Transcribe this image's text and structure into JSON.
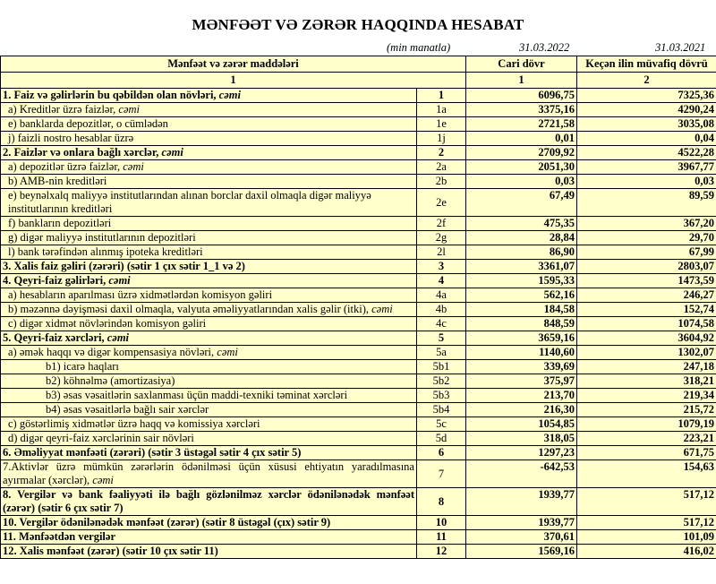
{
  "title": "MƏNFƏƏT VƏ ZƏRƏR HAQQINDA HESABAT",
  "units": "(min manatla)",
  "date_current": "31.03.2022",
  "date_previous": "31.03.2021",
  "header": {
    "col_items": "Mənfəət və zərər maddələri",
    "col_current": "Cari dövr",
    "col_previous": "Keçən ilin müvafiq dövrü",
    "num_items": "1",
    "num_current": "1",
    "num_previous": "2"
  },
  "rows": [
    {
      "label": "1. Faiz və gəlirlərin bu qəbildən olan növləri, ",
      "em": "cəmi",
      "code": "1",
      "cur": "6096,75",
      "prev": "7325,36",
      "bold": true,
      "level": 0
    },
    {
      "label": "a) Kreditlər üzrə faizlər, ",
      "em": "cəmi",
      "code": "1a",
      "cur": "3375,16",
      "prev": "4290,24",
      "bold": false,
      "level": 1
    },
    {
      "label": "e) banklarda depozitlər, o cümlədən",
      "em": "",
      "code": "1e",
      "cur": "2721,58",
      "prev": "3035,08",
      "bold": false,
      "level": 1
    },
    {
      "label": "j) faizli nostro hesablar üzrə",
      "em": "",
      "code": "1j",
      "cur": "0,01",
      "prev": "0,04",
      "bold": false,
      "level": 1
    },
    {
      "label": "2. Faizlər və onlara bağlı xərclər, ",
      "em": "cəmi",
      "code": "2",
      "cur": "2709,92",
      "prev": "4522,28",
      "bold": true,
      "level": 0
    },
    {
      "label": "a) depozitlər üzrə faizlər, ",
      "em": "cəmi",
      "code": "2a",
      "cur": "2051,30",
      "prev": "3967,77",
      "bold": false,
      "level": 1
    },
    {
      "label": "b) AMB-nin kreditləri",
      "em": "",
      "code": "2b",
      "cur": "0,03",
      "prev": "0,03",
      "bold": false,
      "level": 1
    },
    {
      "label": "e) beynəlxalq maliyyə institutlarından alınan borclar daxil olmaqla digər maliyyə institutlarının kreditləri",
      "em": "",
      "code": "2e",
      "cur": "67,49",
      "prev": "89,59",
      "bold": false,
      "level": 1
    },
    {
      "label": "f) bankların depozitləri",
      "em": "",
      "code": "2f",
      "cur": "475,35",
      "prev": "367,20",
      "bold": false,
      "level": 1
    },
    {
      "label": "g) digər maliyyə institutlarının depozitləri",
      "em": "",
      "code": "2g",
      "cur": "28,84",
      "prev": "29,70",
      "bold": false,
      "level": 1
    },
    {
      "label": "l) bank tərəfindən alınmış ipoteka kreditləri",
      "em": "",
      "code": "2l",
      "cur": "86,90",
      "prev": "67,99",
      "bold": false,
      "level": 1
    },
    {
      "label": "3. Xalis faiz gəliri (zərəri) (sətir 1 çıx sətir 1_1 və 2)",
      "em": "",
      "code": "3",
      "cur": "3361,07",
      "prev": "2803,07",
      "bold": true,
      "level": 0
    },
    {
      "label": "4. Qeyri-faiz gəlirləri, ",
      "em": "cəmi",
      "code": "4",
      "cur": "1595,33",
      "prev": "1473,59",
      "bold": true,
      "level": 0
    },
    {
      "label": "a) hesabların aparılması üzrə xidmətlərdən komisyon gəliri",
      "em": "",
      "code": "4a",
      "cur": "562,16",
      "prev": "246,27",
      "bold": false,
      "level": 1
    },
    {
      "label": "b) məzənnə dəyişməsi daxil olmaqla, valyuta əməliyyatlarından xalis gəlir (itki), ",
      "em": "cəmi",
      "code": "4b",
      "cur": "184,58",
      "prev": "152,74",
      "bold": false,
      "level": 1
    },
    {
      "label": "c) digər xidmət növlərindən komisyon gəliri",
      "em": "",
      "code": "4c",
      "cur": "848,59",
      "prev": "1074,58",
      "bold": false,
      "level": 1
    },
    {
      "label": "5. Qeyri-faiz xərcləri, ",
      "em": "cəmi",
      "code": "5",
      "cur": "3659,16",
      "prev": "3604,92",
      "bold": true,
      "level": 0
    },
    {
      "label": "a) əmək haqqı və digər kompensasiya növləri, ",
      "em": "cəmi",
      "code": "5a",
      "cur": "1140,60",
      "prev": "1302,07",
      "bold": false,
      "level": 1
    },
    {
      "label": "b1) icarə haqları",
      "em": "",
      "code": "5b1",
      "cur": "339,69",
      "prev": "247,18",
      "bold": false,
      "level": 2
    },
    {
      "label": "b2) köhnəlmə (amortizasiya)",
      "em": "",
      "code": "5b2",
      "cur": "375,97",
      "prev": "318,21",
      "bold": false,
      "level": 2
    },
    {
      "label": "b3) əsas vəsaitlərin saxlanması üçün maddi-texniki təminat xərcləri",
      "em": "",
      "code": "5b3",
      "cur": "213,70",
      "prev": "219,34",
      "bold": false,
      "level": 2
    },
    {
      "label": "b4) əsas vəsaitlərlə bağlı sair xərclər",
      "em": "",
      "code": "5b4",
      "cur": "216,30",
      "prev": "215,72",
      "bold": false,
      "level": 2
    },
    {
      "label": "c) göstərlimiş xidmətlər üzrə haqq və komissiya xərcləri",
      "em": "",
      "code": "5c",
      "cur": "1054,85",
      "prev": "1079,19",
      "bold": false,
      "level": 1
    },
    {
      "label": "d) digər qeyri-faiz xərclərinin sair növləri",
      "em": "",
      "code": "5d",
      "cur": "318,05",
      "prev": "223,21",
      "bold": false,
      "level": 1
    },
    {
      "label": "6. Əməliyyat mənfəəti (zərəri) (sətir 3 üstəgəl sətir 4 çıx sətir 5)",
      "em": "",
      "code": "6",
      "cur": "1297,23",
      "prev": "671,75",
      "bold": true,
      "level": 0
    },
    {
      "label": "7.Aktivlər üzrə mümkün zərərlərin ödənilməsi üçün xüsusi ehtiyatın yaradılmasına ayırmalar (xərclər), ",
      "em": "cəmi",
      "code": "7",
      "cur": "-642,53",
      "prev": "154,63",
      "bold": false,
      "level": 0,
      "justify": true
    },
    {
      "label": "8. Vergilər və bank fəaliyyəti ilə bağlı gözlənilməz xərclər ödənilənədək mənfəət (zərər) (sətir 6 çıx sətir 7)",
      "em": "",
      "code": "8",
      "cur": "1939,77",
      "prev": "517,12",
      "bold": true,
      "level": 0,
      "justify": true
    },
    {
      "label": "10. Vergilər ödənilənədək mənfəət (zərər) (sətir 8 üstəgəl (çıx) sətir 9)",
      "em": "",
      "code": "10",
      "cur": "1939,77",
      "prev": "517,12",
      "bold": true,
      "level": 0
    },
    {
      "label": "11. Mənfəətdən vergilər",
      "em": "",
      "code": "11",
      "cur": "370,61",
      "prev": "101,09",
      "bold": true,
      "level": 0
    },
    {
      "label": "12. Xalis mənfəət (zərər) (sətir 10 çıx sətir 11)",
      "em": "",
      "code": "12",
      "cur": "1569,16",
      "prev": "416,02",
      "bold": true,
      "level": 0
    }
  ]
}
